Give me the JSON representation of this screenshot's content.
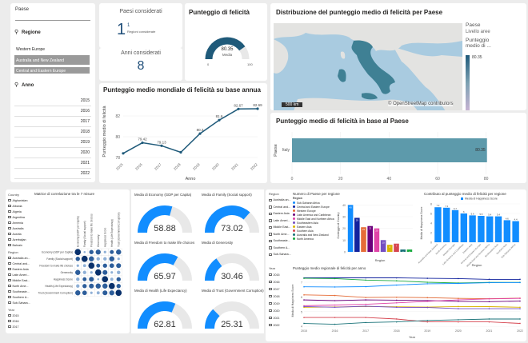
{
  "slicer_paese": {
    "title": "Paese",
    "region_label": "Regione",
    "regions": [
      "Western Europe",
      "Australia and New Zealand",
      "Central and Eastern Europe"
    ],
    "year_label": "Anno",
    "years": [
      "2015",
      "2016",
      "2017",
      "2018",
      "2019",
      "2020",
      "2021",
      "2022"
    ]
  },
  "kpi_paesi": {
    "title": "Paesi considerati",
    "value": "1",
    "sub_value": "1",
    "sub_label": "Regioni considerate"
  },
  "kpi_anni": {
    "title": "Anni considerati",
    "value": "8"
  },
  "gauge_top": {
    "title": "Punteggio di felicità",
    "value": "80.35",
    "label": "Media",
    "min": "0",
    "max": "100",
    "fraction": 0.8035
  },
  "map": {
    "title": "Distribuzione del punteggio medio di felicità per Paese",
    "legend_title": "Paese",
    "legend_sub": "Livello aree",
    "legend_title2": "Punteggio medio di ...",
    "legend_value": "80.35",
    "scale_label": "500 km",
    "attribution": "© OpenStreetMap contributors"
  },
  "line_chart": {
    "title": "Punteggio medio mondiale di felicità su base annua",
    "ylabel": "Punteggio medio di felicità",
    "xlabel": "Anno"
  },
  "bar_chart": {
    "title": "Punteggio medio di felicità in base al Paese",
    "ylabel": "Paese"
  },
  "corr": {
    "title": "Matrice di correlazione tra le 7 misure",
    "country_label": "Country",
    "countries": [
      "Afghanistan",
      "Albania",
      "Algeria",
      "Argentina",
      "Armenia",
      "Australia",
      "Austria",
      "Azerbaijan",
      "Bahrain"
    ],
    "region_label": "Region",
    "regions": [
      "Australia an...",
      "Central and...",
      "Eastern Asia",
      "Latin Ameri...",
      "Middle East...",
      "North Ame...",
      "Southeaste...",
      "Southern A...",
      "Sub-Sahara..."
    ],
    "year_label": "Year",
    "years": [
      "2015",
      "2016",
      "2017"
    ],
    "measures": [
      "Economy (GDP per Capita)",
      "Family (Social support)",
      "Freedom to make life choices",
      "Generosity",
      "Happiness Score",
      "Health (Life Expectancy)",
      "Trust (Government Corruption)"
    ]
  },
  "gauges": [
    {
      "title": "Media di Economy (GDP per Capita)",
      "value": "58.88",
      "fraction": 0.5888
    },
    {
      "title": "Media di Family (Social support)",
      "value": "73.02",
      "fraction": 0.7302
    },
    {
      "title": "Media di Freedom to make life choices",
      "value": "65.97",
      "fraction": 0.6597
    },
    {
      "title": "Media di Generosity",
      "value": "30.46",
      "fraction": 0.3046
    },
    {
      "title": "Media di Health (Life Expectancy)",
      "value": "62.81",
      "fraction": 0.6281
    },
    {
      "title": "Media di Trust (Government Corruption)",
      "value": "25.31",
      "fraction": 0.2531
    }
  ],
  "region_slicer": {
    "label": "Region",
    "items": [
      "Australia an...",
      "Central and...",
      "Eastern Asia",
      "Latin Ameri...",
      "Middle East...",
      "North Ame...",
      "Southeaste...",
      "Southern A...",
      "Sub-Sahara..."
    ]
  },
  "year_slicer": {
    "label": "Year",
    "items": [
      "2015",
      "2016",
      "2017",
      "2018",
      "2019",
      "2020",
      "2021",
      "2022"
    ]
  },
  "region_count": {
    "title": "Numero di Paese per regione",
    "legend_label": "Region",
    "legend": [
      "Sub-Saharan Africa",
      "Central and Eastern Europe",
      "Western Europe",
      "Latin America and Caribbean",
      "Middle East and Northern Africa",
      "Southeastern Asia",
      "Eastern Asia",
      "Southern Asia",
      "Australia and New Zealand",
      "North America"
    ],
    "xlabel": "Region",
    "ylabel": "Conteggio di Country"
  },
  "region_contrib": {
    "title": "Contributo al punteggio medio di felicità per regione",
    "legend": "Media di Happiness Score",
    "xlabel": "Region",
    "ylabel": "Media di Happiness Score"
  },
  "region_lines": {
    "title": "Punteggio medio regionale di felicità per anno",
    "ylabel": "Media di Happiness Score",
    "xlabel": "Year",
    "legend_label": "Region"
  },
  "chart_data": [
    {
      "type": "line",
      "title": "Punteggio medio mondiale di felicità su base annua",
      "x": [
        "2015",
        "2016",
        "2017",
        "2018",
        "2019",
        "2020",
        "2021",
        "2022"
      ],
      "series": [
        {
          "values": [
            78.4,
            79.42,
            79.13,
            78.5,
            80.3,
            81.6,
            82.67,
            82.69
          ]
        }
      ],
      "data_labels": [
        "",
        "79.42",
        "79.13",
        "",
        "80.3",
        "81.6",
        "82.67",
        "82.69"
      ],
      "yticks": [
        "78",
        "80",
        "82"
      ],
      "ylim": [
        78,
        83
      ],
      "xlabel": "Anno",
      "ylabel": "Punteggio medio di felicità"
    },
    {
      "type": "bar",
      "title": "Punteggio medio di felicità in base al Paese",
      "categories": [
        "Italy"
      ],
      "values": [
        80.35
      ],
      "xticks": [
        "0",
        "20",
        "40",
        "60",
        "80"
      ],
      "xlim": [
        0,
        90
      ],
      "ylabel": "Paese"
    },
    {
      "type": "bar",
      "title": "Numero di Paese per regione",
      "categories": [
        "Sub-Saharan Africa",
        "Central and Eastern Europe",
        "Western Europe",
        "Latin America and Caribbean",
        "Middle East and Northern Africa",
        "Southeastern Asia",
        "Eastern Asia",
        "Southern Asia",
        "Australia and New Zealand",
        "North America"
      ],
      "values": [
        40,
        29,
        21,
        22,
        20,
        10,
        6,
        7,
        2,
        2
      ],
      "colors": [
        "#118dff",
        "#12239e",
        "#e66c37",
        "#6b007b",
        "#e044a7",
        "#744ec2",
        "#d9b300",
        "#d64550",
        "#197278",
        "#1aab40"
      ],
      "yticks": [
        "0",
        "10",
        "20",
        "30",
        "40"
      ],
      "ylim": [
        0,
        45
      ],
      "xlabel": "Region",
      "ylabel": "Conteggio di Country"
    },
    {
      "type": "bar",
      "title": "Contributo al punteggio medio di felicità per regione",
      "categories": [
        "Australia and New Zealand",
        "North America",
        "Western Europe",
        "Latin America and Caribbean",
        "Eastern Asia",
        "Central and Eastern Europe",
        "Middle East and Northern Africa",
        "Southeastern Asia",
        "Southern Asia",
        "Sub-Saharan Africa"
      ],
      "values": [
        7.3,
        7.2,
        6.7,
        6.0,
        5.6,
        5.5,
        5.4,
        5.4,
        4.6,
        4.4
      ],
      "yticks": [
        "0",
        "2",
        "4",
        "6",
        "8"
      ],
      "ylim": [
        0,
        8
      ],
      "xlabel": "Region",
      "ylabel": "Media di Happiness Score"
    },
    {
      "type": "line",
      "title": "Punteggio medio regionale di felicità per anno",
      "x": [
        "2015",
        "2016",
        "2017",
        "2018",
        "2019",
        "2020",
        "2021",
        "2022"
      ],
      "series": [
        {
          "values": [
            7.3,
            7.3,
            7.3,
            7.3,
            7.27,
            7.25,
            7.2,
            7.2
          ],
          "color": "#12239e"
        },
        {
          "values": [
            7.27,
            7.25,
            7.15,
            7.1,
            7.0,
            6.95,
            6.99,
            6.99
          ],
          "color": "#1aab40"
        },
        {
          "values": [
            6.69,
            6.68,
            6.7,
            6.81,
            6.9,
            6.92,
            6.97,
            6.98
          ],
          "color": "#118dff"
        },
        {
          "values": [
            6.14,
            6.1,
            5.96,
            5.98,
            5.95,
            5.9,
            5.88,
            5.92
          ],
          "color": "#e66c37"
        },
        {
          "values": [
            5.8,
            5.75,
            5.8,
            5.78,
            5.75,
            5.7,
            5.68,
            5.72
          ],
          "color": "#6b007b"
        },
        {
          "values": [
            5.4,
            5.45,
            5.5,
            5.6,
            5.7,
            5.8,
            5.87,
            5.9
          ],
          "color": "#e044a7"
        },
        {
          "values": [
            5.3,
            5.32,
            5.35,
            5.33,
            5.31,
            5.35,
            5.34,
            5.3
          ],
          "color": "#d9b300"
        },
        {
          "values": [
            5.35,
            5.3,
            5.37,
            5.3,
            5.28,
            5.2,
            5.2,
            5.2
          ],
          "color": "#744ec2"
        },
        {
          "values": [
            4.6,
            4.6,
            4.6,
            4.5,
            4.3,
            4.3,
            4.3,
            4.2
          ],
          "color": "#d64550"
        },
        {
          "values": [
            4.2,
            4.14,
            4.26,
            4.3,
            4.4,
            4.45,
            4.5,
            4.5
          ],
          "color": "#197278"
        }
      ],
      "yticks": [
        "4",
        "5",
        "6",
        "7"
      ],
      "ylim": [
        3.9,
        7.6
      ],
      "xlabel": "Year",
      "ylabel": "Media di Happiness Score"
    }
  ]
}
